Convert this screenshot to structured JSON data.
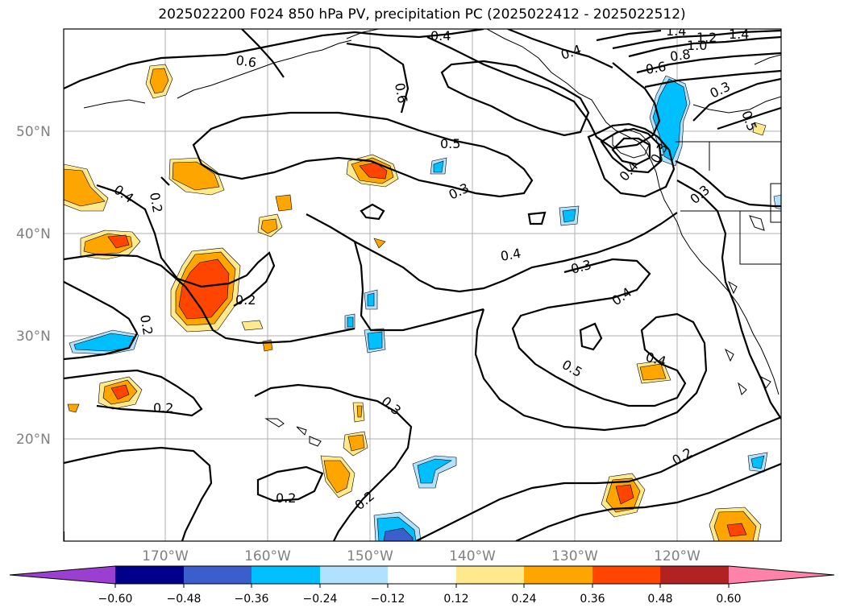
{
  "title": "2025022200 F024 850 hPa PV, precipitation PC (2025022412 - 2025022512)",
  "lat_labels": [
    "50°N",
    "40°N",
    "30°N",
    "20°N"
  ],
  "lon_labels": [
    "170°W",
    "160°W",
    "150°W",
    "140°W",
    "130°W",
    "120°W"
  ],
  "contour_labels": [
    "0.6",
    "0.4",
    "0.4",
    "1.4",
    "1.2",
    "1.0",
    "1.4",
    "0.8",
    "0.6",
    "0.6",
    "0.3",
    "0.5",
    "0.5",
    "0.4",
    "0.3",
    "0.4",
    "0.3",
    "0.3",
    "0.4",
    "0.3",
    "0.2",
    "0.2",
    "0.4",
    "0.2",
    "0.4",
    "0.5",
    "0.3",
    "0.2",
    "0.2",
    "0.2",
    "0.2"
  ],
  "colorbar": {
    "ticks": [
      "−0.60",
      "−0.48",
      "−0.36",
      "−0.24",
      "−0.12",
      "0.12",
      "0.24",
      "0.36",
      "0.48",
      "0.60"
    ],
    "colors": [
      "#9a3fd0",
      "#00008b",
      "#3a5fcd",
      "#00bfff",
      "#b0e2ff",
      "#ffffff",
      "#ffe98c",
      "#ffa500",
      "#ff4500",
      "#b22222",
      "#ff82ab"
    ]
  }
}
